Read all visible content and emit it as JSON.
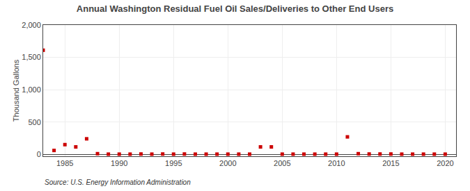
{
  "chart_data": {
    "type": "scatter",
    "title": "Annual Washington Residual Fuel Oil Sales/Deliveries to Other End Users",
    "ylabel": "Thousand Gallons",
    "annotations": [
      "Source: U.S. Energy Information Administration"
    ],
    "color": "#cc0000",
    "marker": "square",
    "x": [
      1983,
      1984,
      1985,
      1986,
      1987,
      1988,
      1989,
      1990,
      1991,
      1992,
      1993,
      1994,
      1995,
      1996,
      1997,
      1998,
      1999,
      2000,
      2001,
      2002,
      2003,
      2004,
      2005,
      2006,
      2007,
      2008,
      2009,
      2010,
      2011,
      2012,
      2013,
      2014,
      2015,
      2016,
      2017,
      2018,
      2019,
      2020
    ],
    "values": [
      1610,
      60,
      150,
      115,
      240,
      10,
      3,
      3,
      3,
      5,
      3,
      5,
      3,
      5,
      3,
      3,
      3,
      3,
      3,
      3,
      115,
      115,
      3,
      3,
      3,
      3,
      3,
      3,
      270,
      10,
      5,
      5,
      5,
      3,
      3,
      3,
      3,
      3
    ],
    "xlim": [
      1983,
      2021
    ],
    "ylim": [
      -30,
      2000
    ],
    "xticks": [
      1985,
      1990,
      1995,
      2000,
      2005,
      2010,
      2015,
      2020
    ],
    "yticks": [
      0,
      500,
      {
        "value": 1000,
        "label": "1,000"
      },
      {
        "value": 1500,
        "label": "1,500"
      },
      {
        "value": 2000,
        "label": "2,000"
      }
    ],
    "grid": true
  }
}
